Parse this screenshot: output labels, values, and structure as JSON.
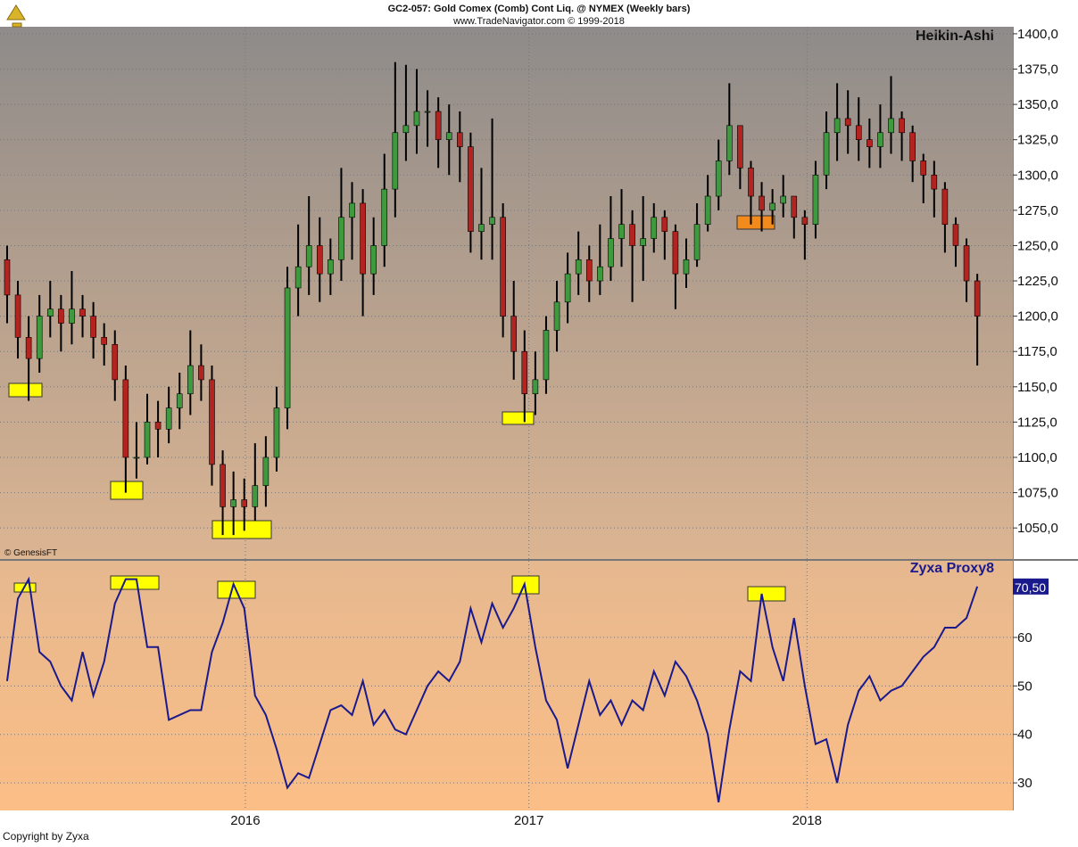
{
  "header": {
    "title": "GC2-057:  Gold Comex (Comb) Cont Liq. @ NYMEX  (Weekly bars)",
    "subtitle": "www.TradeNavigator.com © 1999-2018",
    "source": "© GenesisFT",
    "footer": "Copyright by Zyxa"
  },
  "chart_data": [
    {
      "type": "candlestick",
      "title": "Heikin-Ashi",
      "up_color": "#3f9a3f",
      "down_color": "#b3231f",
      "grid": true,
      "open": [
        1240,
        1215,
        1185,
        1170,
        1200,
        1205,
        1195,
        1205,
        1200,
        1185,
        1180,
        1155,
        1100,
        1100,
        1125,
        1120,
        1135,
        1145,
        1165,
        1155,
        1095,
        1065,
        1070,
        1065,
        1080,
        1100,
        1135,
        1220,
        1235,
        1250,
        1230,
        1240,
        1270,
        1280,
        1230,
        1250,
        1290,
        1330,
        1335,
        1345,
        1345,
        1325,
        1330,
        1320,
        1260,
        1265,
        1270,
        1200,
        1175,
        1145,
        1155,
        1190,
        1210,
        1230,
        1240,
        1225,
        1235,
        1255,
        1265,
        1250,
        1255,
        1270,
        1260,
        1230,
        1240,
        1265,
        1285,
        1310,
        1335,
        1305,
        1285,
        1275,
        1280,
        1285,
        1270,
        1265,
        1300,
        1330,
        1340,
        1335,
        1325,
        1320,
        1330,
        1340,
        1330,
        1310,
        1300,
        1290,
        1265,
        1250,
        1225
      ],
      "high": [
        1250,
        1225,
        1200,
        1215,
        1225,
        1215,
        1232,
        1215,
        1210,
        1195,
        1190,
        1165,
        1125,
        1145,
        1140,
        1150,
        1160,
        1190,
        1180,
        1165,
        1105,
        1090,
        1085,
        1110,
        1115,
        1150,
        1235,
        1265,
        1285,
        1270,
        1255,
        1305,
        1295,
        1290,
        1270,
        1315,
        1380,
        1378,
        1375,
        1360,
        1355,
        1350,
        1345,
        1330,
        1305,
        1340,
        1280,
        1225,
        1190,
        1175,
        1200,
        1225,
        1245,
        1260,
        1250,
        1265,
        1285,
        1290,
        1275,
        1285,
        1280,
        1275,
        1265,
        1255,
        1280,
        1300,
        1325,
        1365,
        1335,
        1310,
        1295,
        1290,
        1300,
        1285,
        1275,
        1310,
        1345,
        1365,
        1360,
        1355,
        1340,
        1350,
        1370,
        1345,
        1335,
        1315,
        1310,
        1295,
        1270,
        1255,
        1230
      ],
      "low": [
        1195,
        1170,
        1140,
        1160,
        1185,
        1175,
        1180,
        1185,
        1170,
        1165,
        1140,
        1075,
        1085,
        1095,
        1100,
        1110,
        1120,
        1130,
        1140,
        1080,
        1045,
        1045,
        1048,
        1055,
        1065,
        1090,
        1120,
        1200,
        1215,
        1210,
        1215,
        1225,
        1240,
        1200,
        1215,
        1235,
        1270,
        1310,
        1315,
        1320,
        1305,
        1300,
        1295,
        1245,
        1240,
        1240,
        1185,
        1155,
        1125,
        1130,
        1145,
        1175,
        1195,
        1215,
        1210,
        1215,
        1225,
        1235,
        1210,
        1225,
        1245,
        1240,
        1205,
        1220,
        1235,
        1260,
        1275,
        1300,
        1290,
        1265,
        1260,
        1265,
        1270,
        1255,
        1240,
        1255,
        1290,
        1310,
        1315,
        1310,
        1305,
        1305,
        1315,
        1310,
        1295,
        1280,
        1270,
        1245,
        1235,
        1210,
        1165
      ],
      "close": [
        1215,
        1185,
        1170,
        1200,
        1205,
        1195,
        1205,
        1200,
        1185,
        1180,
        1155,
        1100,
        1100,
        1125,
        1120,
        1135,
        1145,
        1165,
        1155,
        1095,
        1065,
        1070,
        1065,
        1080,
        1100,
        1135,
        1220,
        1235,
        1250,
        1230,
        1240,
        1270,
        1280,
        1230,
        1250,
        1290,
        1330,
        1335,
        1345,
        1345,
        1325,
        1330,
        1320,
        1260,
        1265,
        1270,
        1200,
        1175,
        1145,
        1155,
        1190,
        1210,
        1230,
        1240,
        1225,
        1235,
        1255,
        1265,
        1250,
        1255,
        1270,
        1260,
        1230,
        1240,
        1265,
        1285,
        1310,
        1335,
        1305,
        1285,
        1275,
        1280,
        1285,
        1270,
        1265,
        1300,
        1330,
        1340,
        1335,
        1325,
        1320,
        1330,
        1340,
        1330,
        1310,
        1300,
        1290,
        1265,
        1250,
        1225,
        1200
      ],
      "xlim": [
        -0.66,
        93.3
      ],
      "xticks": [
        22.1,
        48.4,
        74.2
      ],
      "ylim": [
        1028,
        1405
      ],
      "yticks": [
        {
          "value": 1050,
          "label": "1050,0"
        },
        {
          "value": 1075,
          "label": "1075,0"
        },
        {
          "value": 1100,
          "label": "1100,0"
        },
        {
          "value": 1125,
          "label": "1125,0"
        },
        {
          "value": 1150,
          "label": "1150,0"
        },
        {
          "value": 1175,
          "label": "1175,0"
        },
        {
          "value": 1200,
          "label": "1200,0"
        },
        {
          "value": 1225,
          "label": "1225,0"
        },
        {
          "value": 1250,
          "label": "1250,0"
        },
        {
          "value": 1275,
          "label": "1275,0"
        },
        {
          "value": 1300,
          "label": "1300,0"
        },
        {
          "value": 1325,
          "label": "1325,0"
        },
        {
          "value": 1350,
          "label": "1350,0"
        },
        {
          "value": 1375,
          "label": "1375,0"
        },
        {
          "value": 1400,
          "label": "1400,0"
        }
      ]
    },
    {
      "type": "line",
      "title": "Zyxa Proxy8",
      "color": "#1a1a8c",
      "grid": true,
      "values": [
        51,
        68,
        72,
        57,
        55,
        50,
        47,
        57,
        48,
        55,
        67,
        72,
        72,
        58,
        58,
        43,
        44,
        45,
        45,
        57,
        63,
        71,
        66,
        48,
        44,
        37,
        29,
        32,
        31,
        38,
        45,
        46,
        44,
        51,
        42,
        45,
        41,
        40,
        45,
        50,
        53,
        51,
        55,
        66,
        59,
        67,
        62,
        66,
        71,
        58,
        47,
        43,
        33,
        42,
        51,
        44,
        47,
        42,
        47,
        45,
        53,
        48,
        55,
        52,
        47,
        40,
        26,
        41,
        53,
        51,
        69,
        58,
        51,
        64,
        50,
        38,
        39,
        30,
        42,
        49,
        52,
        47,
        49,
        50,
        53,
        56,
        58,
        62,
        62,
        64,
        70.5
      ],
      "last_label": "70,50",
      "xlim": [
        -0.66,
        93.3
      ],
      "xticks": [
        {
          "value": 22.1,
          "label": "2016"
        },
        {
          "value": 48.4,
          "label": "2017"
        },
        {
          "value": 74.2,
          "label": "2018"
        }
      ],
      "ylim": [
        24.5,
        75.8
      ],
      "yticks": [
        30,
        40,
        50,
        60
      ]
    }
  ]
}
